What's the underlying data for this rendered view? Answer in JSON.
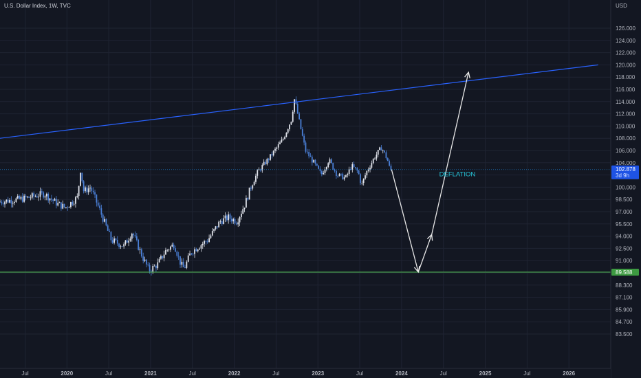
{
  "header": {
    "title": "U.S. Dollar Index, 1W, TVC"
  },
  "colors": {
    "background": "#131722",
    "grid": "#1f2433",
    "candle_up": "#e0e3eb",
    "candle_down": "#4a7fd6",
    "trendline": "#2962ff",
    "support_line": "#4caf50",
    "current_price": "#2196f3",
    "arrow": "#e8e8e8",
    "annotation": "#26c6da"
  },
  "chart_data": {
    "type": "candlestick",
    "currency": "USD",
    "y_ticks": [
      "126.000",
      "124.000",
      "122.000",
      "120.000",
      "118.000",
      "116.000",
      "114.000",
      "112.000",
      "110.000",
      "108.000",
      "106.000",
      "104.000",
      "102.000",
      "100.000",
      "98.500",
      "97.000",
      "95.500",
      "94.000",
      "92.500",
      "91.000",
      "89.500",
      "88.300",
      "87.100",
      "85.900",
      "84.700",
      "83.500"
    ],
    "x_ticks": [
      "Jul",
      "2020",
      "Jul",
      "2021",
      "Jul",
      "2022",
      "Jul",
      "2023",
      "Jul",
      "2024",
      "Jul",
      "2025",
      "Jul",
      "2026"
    ],
    "x_ticks_dates": [
      2019.5,
      2020.0,
      2020.5,
      2021.0,
      2021.5,
      2022.0,
      2022.5,
      2023.0,
      2023.5,
      2024.0,
      2024.5,
      2025.0,
      2025.5,
      2026.0
    ],
    "x_range": [
      2019.2,
      2026.5
    ],
    "path": [
      [
        2019.2,
        98.2
      ],
      [
        2019.5,
        98.6
      ],
      [
        2019.75,
        99.2
      ],
      [
        2019.9,
        98.0
      ],
      [
        2020.0,
        97.5
      ],
      [
        2020.15,
        98.8
      ],
      [
        2020.18,
        102.8
      ],
      [
        2020.22,
        99.5
      ],
      [
        2020.3,
        100.0
      ],
      [
        2020.4,
        97.5
      ],
      [
        2020.55,
        93.5
      ],
      [
        2020.7,
        92.8
      ],
      [
        2020.8,
        94.5
      ],
      [
        2020.92,
        91.5
      ],
      [
        2021.0,
        89.8
      ],
      [
        2021.1,
        90.5
      ],
      [
        2021.2,
        92.2
      ],
      [
        2021.3,
        93.0
      ],
      [
        2021.38,
        90.6
      ],
      [
        2021.42,
        90.0
      ],
      [
        2021.5,
        92.0
      ],
      [
        2021.6,
        92.8
      ],
      [
        2021.7,
        93.5
      ],
      [
        2021.85,
        95.8
      ],
      [
        2021.95,
        96.3
      ],
      [
        2022.05,
        95.8
      ],
      [
        2022.15,
        98.0
      ],
      [
        2022.3,
        102.5
      ],
      [
        2022.45,
        105.0
      ],
      [
        2022.6,
        107.8
      ],
      [
        2022.7,
        111.0
      ],
      [
        2022.74,
        114.5
      ],
      [
        2022.8,
        110.5
      ],
      [
        2022.87,
        106.0
      ],
      [
        2022.97,
        104.0
      ],
      [
        2023.06,
        102.0
      ],
      [
        2023.15,
        104.5
      ],
      [
        2023.25,
        102.0
      ],
      [
        2023.35,
        101.5
      ],
      [
        2023.42,
        103.5
      ],
      [
        2023.5,
        102.5
      ],
      [
        2023.54,
        100.3
      ],
      [
        2023.6,
        102.5
      ],
      [
        2023.7,
        105.0
      ],
      [
        2023.78,
        106.5
      ],
      [
        2023.85,
        104.5
      ],
      [
        2023.88,
        102.9
      ]
    ],
    "current_price": 102.878,
    "current_price_label": "102.878",
    "countdown_label": "3d 9h",
    "support_level": 89.588,
    "support_label": "89.588",
    "trendline": [
      [
        2019.2,
        108.0
      ],
      [
        2026.35,
        120.0
      ]
    ],
    "projection": [
      [
        2023.88,
        102.9
      ],
      [
        2024.2,
        89.6
      ],
      [
        2024.36,
        94.2
      ],
      [
        2024.8,
        118.8
      ]
    ],
    "annotation": {
      "text": "DEFLATION",
      "x": 2024.45,
      "y": 101.8
    }
  }
}
